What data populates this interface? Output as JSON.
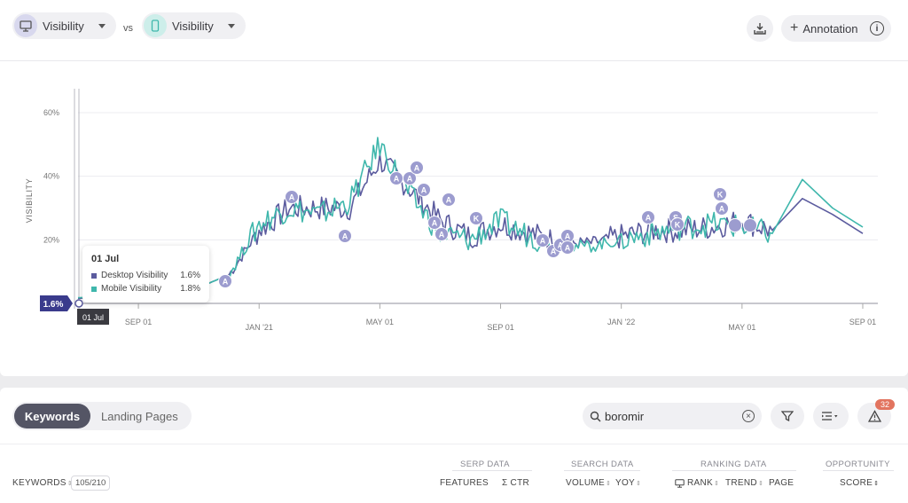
{
  "header": {
    "left_metric": {
      "label": "Visibility",
      "device": "desktop-icon"
    },
    "vs_label": "vs",
    "right_metric": {
      "label": "Visibility",
      "device": "mobile-icon"
    },
    "annotation_label": "Annotation"
  },
  "chart_data": {
    "type": "line",
    "ylabel": "VISIBILITY",
    "y_ticks": [
      "20%",
      "40%",
      "60%"
    ],
    "x_ticks": [
      "SEP 01",
      "JAN '21",
      "MAY 01",
      "SEP 01",
      "JAN '22",
      "MAY 01",
      "SEP 01"
    ],
    "ylim": [
      0,
      60
    ],
    "grid": true,
    "current_value_label": "1.6%",
    "crosshair_date": "01 Jul",
    "series": [
      {
        "name": "Desktop Visibility",
        "color": "#5b5b9e",
        "x": [
          "2020-07",
          "2020-08",
          "2020-09",
          "2020-10",
          "2020-11",
          "2020-12",
          "2021-01",
          "2021-02",
          "2021-03",
          "2021-04",
          "2021-05",
          "2021-06",
          "2021-07",
          "2021-08",
          "2021-09",
          "2021-10",
          "2021-11",
          "2021-12",
          "2022-01",
          "2022-02",
          "2022-03",
          "2022-04",
          "2022-05",
          "2022-06",
          "2022-07",
          "2022-08",
          "2022-09"
        ],
        "values": [
          1.6,
          2,
          3,
          4,
          5,
          9,
          23,
          30,
          30,
          30,
          45,
          36,
          26,
          21,
          25,
          22,
          19,
          19,
          21,
          23,
          23,
          24,
          26,
          23,
          33,
          28,
          22
        ]
      },
      {
        "name": "Mobile Visibility",
        "color": "#3fb7ac",
        "x": [
          "2020-07",
          "2020-08",
          "2020-09",
          "2020-10",
          "2020-11",
          "2020-12",
          "2021-01",
          "2021-02",
          "2021-03",
          "2021-04",
          "2021-05",
          "2021-06",
          "2021-07",
          "2021-08",
          "2021-09",
          "2021-10",
          "2021-11",
          "2021-12",
          "2022-01",
          "2022-02",
          "2022-03",
          "2022-04",
          "2022-05",
          "2022-06",
          "2022-07",
          "2022-08",
          "2022-09"
        ],
        "values": [
          1.8,
          2,
          3,
          4,
          5,
          9,
          25,
          30,
          28,
          32,
          50,
          34,
          22,
          20,
          26,
          21,
          18,
          18,
          20,
          22,
          24,
          25,
          24,
          22,
          39,
          30,
          24
        ]
      }
    ],
    "annotation_markers": [
      "A",
      "A",
      "A",
      "A",
      "A",
      "A",
      "A",
      "A",
      "A",
      "A",
      "K",
      "A",
      "A",
      "A",
      "A",
      "A",
      "A",
      "S",
      "K",
      "K",
      "A",
      "S"
    ]
  },
  "tooltip": {
    "date": "01 Jul",
    "rows": [
      {
        "label": "Desktop Visibility",
        "value": "1.6%",
        "color": "#5b5b9e"
      },
      {
        "label": "Mobile Visibility",
        "value": "1.8%",
        "color": "#3fb7ac"
      }
    ]
  },
  "tabs": {
    "active": "Keywords",
    "inactive": "Landing Pages"
  },
  "search": {
    "value": "boromir"
  },
  "alerts_count": "32",
  "table": {
    "groups": {
      "serp": "SERP DATA",
      "search": "SEARCH DATA",
      "ranking": "RANKING DATA",
      "opportunity": "OPPORTUNITY"
    },
    "keywords_label": "KEYWORDS",
    "keywords_count": "105/210",
    "columns": {
      "features": "FEATURES",
      "ctr": "Σ CTR",
      "volume": "VOLUME",
      "yoy": "YOY",
      "rank": "RANK",
      "trend": "TREND",
      "page": "PAGE",
      "score": "SCORE"
    }
  }
}
